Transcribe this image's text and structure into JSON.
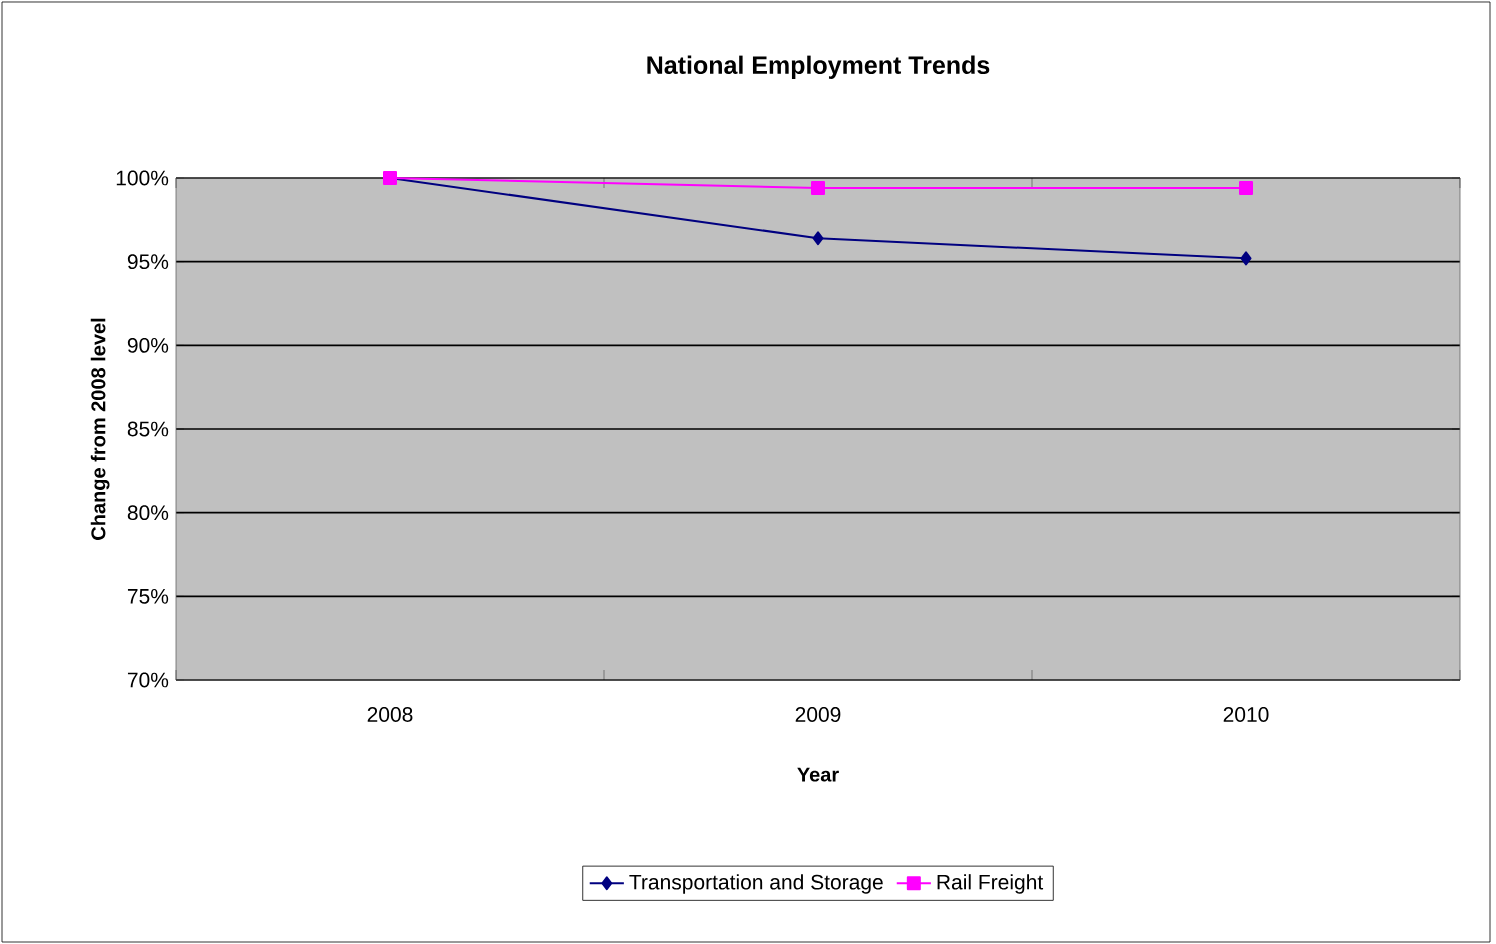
{
  "chart_data": {
    "type": "line",
    "title": "National Employment Trends",
    "xlabel": "Year",
    "ylabel": "Change from 2008 level",
    "categories": [
      "2008",
      "2009",
      "2010"
    ],
    "series": [
      {
        "name": "Transportation and Storage",
        "color": "#000080",
        "marker": "diamond",
        "values": [
          100,
          96.4,
          95.2
        ]
      },
      {
        "name": "Rail Freight",
        "color": "#ff00ff",
        "marker": "square",
        "values": [
          100,
          99.4,
          99.4
        ]
      }
    ],
    "ylim": [
      70,
      100
    ],
    "yticks": [
      {
        "value": 70,
        "label": "70%"
      },
      {
        "value": 75,
        "label": "75%"
      },
      {
        "value": 80,
        "label": "80%"
      },
      {
        "value": 85,
        "label": "85%"
      },
      {
        "value": 90,
        "label": "90%"
      },
      {
        "value": 95,
        "label": "95%"
      },
      {
        "value": 100,
        "label": "100%"
      }
    ],
    "grid": "y",
    "legend": "bottom",
    "line_style": "solid"
  }
}
